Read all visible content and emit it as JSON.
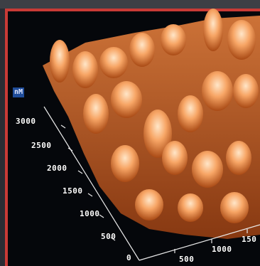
{
  "viewer": {
    "units_label": "nM",
    "y_axis_ticks": [
      "3000",
      "2500",
      "2000",
      "1500",
      "1000",
      "500",
      "0"
    ],
    "x_axis_ticks": [
      "500",
      "1000",
      "150"
    ]
  },
  "colors": {
    "border": "#c93a36",
    "surface_light": "#ffd2a6",
    "surface_dark": "#8a3a10",
    "background": "#05070b"
  }
}
